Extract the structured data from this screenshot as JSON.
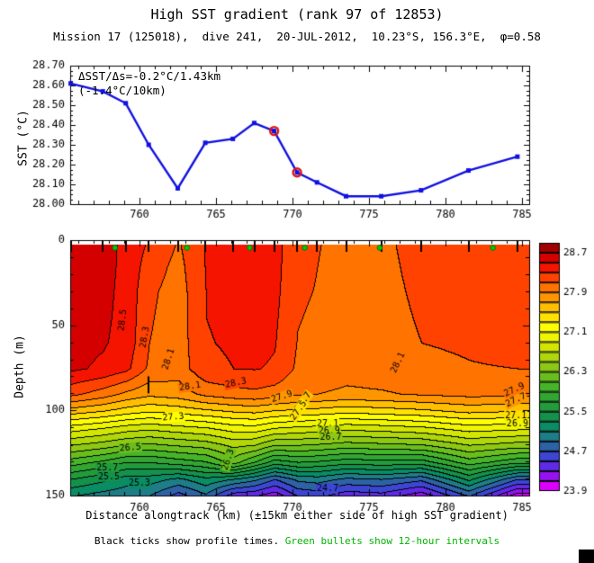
{
  "header": {
    "title": "High SST gradient (rank 97 of 12853)",
    "subtitle": "Mission 17 (125018),  dive 241,  20-JUL-2012,  10.23°S, 156.3°E,  φ=0.58"
  },
  "annotation": {
    "line1": "ΔSST/Δs=-0.2°C/1.43km",
    "line2": "(-1.4°C/10km)"
  },
  "caption": {
    "black": "Black ticks show profile times. ",
    "green": "Green bullets show 12-hour intervals"
  },
  "colors": {
    "line_blue": "#1010E0",
    "highlight_red": "#DC1414",
    "bullet_green": "#00CC00",
    "bullet_edge": "#007700",
    "caption_green": "#00B400"
  },
  "chart_data": [
    {
      "type": "line",
      "name": "sst-alongtrack",
      "ylabel": "SST (°C)",
      "xlim": [
        755.47,
        785.47
      ],
      "ylim": [
        28.0,
        28.7
      ],
      "xticks": [
        760,
        765,
        770,
        775,
        780,
        785
      ],
      "yticks": [
        28.0,
        28.1,
        28.2,
        28.3,
        28.4,
        28.5,
        28.6,
        28.7
      ],
      "x": [
        755.5,
        757.6,
        759.1,
        760.6,
        762.5,
        764.3,
        766.1,
        767.5,
        768.8,
        770.3,
        771.6,
        773.5,
        775.8,
        778.4,
        781.5,
        784.7
      ],
      "y": [
        28.61,
        28.57,
        28.51,
        28.3,
        28.08,
        28.31,
        28.33,
        28.41,
        28.37,
        28.16,
        28.11,
        28.04,
        28.04,
        28.07,
        28.17,
        28.24
      ],
      "highlighted_indices": [
        8,
        9
      ]
    },
    {
      "type": "heatmap",
      "name": "temperature-depth-section",
      "xlabel": "Distance alongtrack (km) (±15km either side of high SST gradient)",
      "ylabel": "Depth (m)",
      "xlim": [
        755.47,
        785.47
      ],
      "ylim": [
        0,
        150
      ],
      "xticks": [
        760,
        765,
        770,
        775,
        780,
        785
      ],
      "yticks": [
        0,
        50,
        100,
        150
      ],
      "level_min": 23.9,
      "level_step": 0.2,
      "depths": [
        0,
        15,
        30,
        45,
        60,
        75,
        90,
        100,
        110,
        120,
        130,
        140,
        150
      ],
      "stations": [
        {
          "km": 755.5,
          "t": [
            28.6,
            28.61,
            28.61,
            28.6,
            28.58,
            28.54,
            28.15,
            27.6,
            27.0,
            26.5,
            26.0,
            25.5,
            25.1
          ]
        },
        {
          "km": 757.6,
          "t": [
            28.56,
            28.56,
            28.55,
            28.54,
            28.52,
            28.46,
            28.0,
            27.5,
            26.9,
            26.4,
            25.85,
            25.35,
            25.0
          ]
        },
        {
          "km": 759.1,
          "t": [
            28.46,
            28.45,
            28.44,
            28.43,
            28.42,
            28.35,
            27.85,
            27.4,
            26.8,
            26.3,
            25.7,
            25.2,
            24.95
          ]
        },
        {
          "km": 760.6,
          "t": [
            28.28,
            28.2,
            28.14,
            28.12,
            28.1,
            28.06,
            27.75,
            27.32,
            26.75,
            26.25,
            25.7,
            25.2,
            24.9
          ]
        },
        {
          "km": 762.5,
          "t": [
            28.09,
            28.04,
            28.01,
            28.0,
            28.0,
            27.99,
            27.8,
            27.38,
            26.82,
            26.32,
            25.8,
            25.05,
            24.6
          ]
        },
        {
          "km": 764.3,
          "t": [
            28.31,
            28.31,
            28.3,
            28.3,
            28.29,
            28.26,
            27.95,
            27.45,
            26.88,
            26.38,
            25.88,
            25.25,
            24.85
          ]
        },
        {
          "km": 766.1,
          "t": [
            28.34,
            28.34,
            28.34,
            28.33,
            28.32,
            28.3,
            28.02,
            27.52,
            27.0,
            26.55,
            26.2,
            25.1,
            24.35
          ]
        },
        {
          "km": 767.5,
          "t": [
            28.41,
            28.4,
            28.39,
            28.37,
            28.35,
            28.31,
            28.05,
            27.55,
            27.02,
            26.5,
            25.9,
            24.95,
            24.3
          ]
        },
        {
          "km": 768.8,
          "t": [
            28.37,
            28.36,
            28.35,
            28.33,
            28.31,
            28.28,
            28.0,
            27.48,
            26.9,
            26.3,
            25.6,
            24.7,
            24.15
          ]
        },
        {
          "km": 770.3,
          "t": [
            28.16,
            28.15,
            28.13,
            28.11,
            28.09,
            28.06,
            27.92,
            27.45,
            26.85,
            26.3,
            25.7,
            24.95,
            24.5
          ]
        },
        {
          "km": 771.6,
          "t": [
            28.11,
            28.1,
            28.09,
            28.07,
            28.06,
            28.04,
            27.9,
            27.42,
            26.82,
            26.27,
            25.67,
            25.0,
            24.55
          ]
        },
        {
          "km": 773.5,
          "t": [
            28.04,
            28.03,
            28.02,
            28.01,
            28.0,
            27.98,
            27.86,
            27.36,
            26.76,
            26.2,
            25.58,
            24.85,
            24.35
          ]
        },
        {
          "km": 775.8,
          "t": [
            28.06,
            28.05,
            28.04,
            28.03,
            28.02,
            28.0,
            27.88,
            27.4,
            26.8,
            26.24,
            25.62,
            24.9,
            24.4
          ]
        },
        {
          "km": 778.4,
          "t": [
            28.18,
            28.16,
            28.14,
            28.12,
            28.1,
            28.06,
            27.92,
            27.45,
            26.85,
            26.28,
            25.6,
            24.75,
            24.15
          ]
        },
        {
          "km": 781.5,
          "t": [
            28.17,
            28.16,
            28.15,
            28.14,
            28.12,
            28.09,
            27.96,
            27.55,
            27.0,
            26.5,
            26.0,
            25.35,
            24.7
          ]
        },
        {
          "km": 784.7,
          "t": [
            28.24,
            28.22,
            28.2,
            28.18,
            28.15,
            28.1,
            27.95,
            27.5,
            26.95,
            26.4,
            25.75,
            24.7,
            23.95
          ]
        }
      ],
      "palette": [
        "#DC00FF",
        "#9612F0",
        "#5F2BE6",
        "#3C46D2",
        "#2D62A5",
        "#1E7D87",
        "#0A8C64",
        "#14914B",
        "#239B3C",
        "#32A532",
        "#46B428",
        "#69BE1E",
        "#8CC814",
        "#AFD70A",
        "#D2E600",
        "#F0F500",
        "#FFFF00",
        "#FFE100",
        "#FFBE00",
        "#FF9600",
        "#FF7300",
        "#FF4200",
        "#F51400",
        "#D40000",
        "#A00000"
      ],
      "contour_labels": [
        {
          "t": "28.5",
          "km": 758.9,
          "d": 47,
          "r": -83
        },
        {
          "t": "28.3",
          "km": 760.35,
          "d": 57,
          "r": -80
        },
        {
          "t": "28.1",
          "km": 761.9,
          "d": 70,
          "r": -72
        },
        {
          "t": "28.1",
          "km": 763.3,
          "d": 86,
          "r": -8
        },
        {
          "t": "28.3",
          "km": 766.3,
          "d": 84,
          "r": -12
        },
        {
          "t": "27.9",
          "km": 769.3,
          "d": 92,
          "r": -18
        },
        {
          "t": "27.7",
          "km": 770.7,
          "d": 95,
          "r": -55
        },
        {
          "t": "27.5",
          "km": 770.4,
          "d": 100,
          "r": -55
        },
        {
          "t": "27.3",
          "km": 762.2,
          "d": 104,
          "r": -5
        },
        {
          "t": "27.1",
          "km": 772.3,
          "d": 108,
          "r": 0
        },
        {
          "t": "26.9",
          "km": 772.4,
          "d": 112,
          "r": 0
        },
        {
          "t": "26.7",
          "km": 772.5,
          "d": 116,
          "r": 0
        },
        {
          "t": "26.5",
          "km": 759.4,
          "d": 122,
          "r": -5
        },
        {
          "t": "26.3",
          "km": 765.8,
          "d": 129,
          "r": -72
        },
        {
          "t": "25.7",
          "km": 757.9,
          "d": 134,
          "r": 0
        },
        {
          "t": "25.5",
          "km": 758.0,
          "d": 139,
          "r": 0
        },
        {
          "t": "25.3",
          "km": 760.0,
          "d": 143,
          "r": 0
        },
        {
          "t": "24.7",
          "km": 772.3,
          "d": 146,
          "r": 0
        },
        {
          "t": "28.1",
          "km": 776.9,
          "d": 72,
          "r": -65
        },
        {
          "t": "27.9",
          "km": 784.5,
          "d": 88,
          "r": -25
        },
        {
          "t": "27.7",
          "km": 784.6,
          "d": 94,
          "r": -25
        },
        {
          "t": "27.1",
          "km": 784.6,
          "d": 103,
          "r": 0
        },
        {
          "t": "26.9",
          "km": 784.7,
          "d": 108,
          "r": 0
        }
      ],
      "bullet_km": [
        758.4,
        763.1,
        767.2,
        770.8,
        775.7,
        783.1
      ],
      "inner_tick": {
        "km": 760.6,
        "d_top": 80,
        "d_bot": 90
      }
    }
  ],
  "colorbar": {
    "min": 23.9,
    "max": 28.9,
    "segment_step": 0.2,
    "labels": [
      "28.7",
      "27.9",
      "27.1",
      "26.3",
      "25.5",
      "24.7",
      "23.9"
    ]
  }
}
